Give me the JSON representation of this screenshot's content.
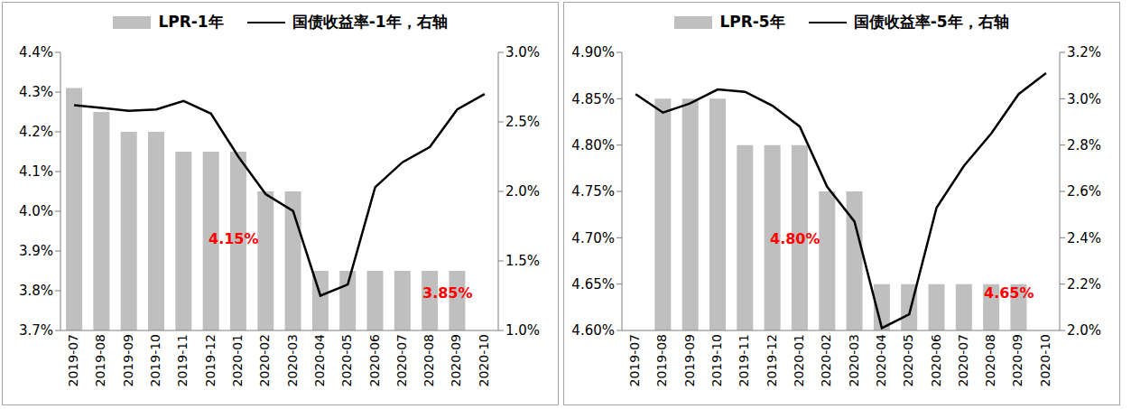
{
  "chart_data": [
    {
      "type": "bar",
      "legend": "top",
      "grid": false,
      "categories": [
        "2019-07",
        "2019-08",
        "2019-09",
        "2019-10",
        "2019-11",
        "2019-12",
        "2020-01",
        "2020-02",
        "2020-03",
        "2020-04",
        "2020-05",
        "2020-06",
        "2020-07",
        "2020-08",
        "2020-09",
        "2020-10"
      ],
      "series": [
        {
          "name": "LPR-1年",
          "type": "bar",
          "color": "#bfbfbf",
          "values": [
            4.31,
            4.25,
            4.2,
            4.2,
            4.15,
            4.15,
            4.15,
            4.05,
            4.05,
            3.85,
            3.85,
            3.85,
            3.85,
            3.85,
            3.85,
            null
          ]
        },
        {
          "name": "国债收益率-1年，右轴",
          "type": "line",
          "color": "#000000",
          "axis": "y2",
          "values": [
            2.62,
            2.6,
            2.58,
            2.59,
            2.65,
            2.56,
            2.25,
            1.98,
            1.86,
            1.25,
            1.33,
            2.03,
            2.21,
            2.32,
            2.59,
            2.7
          ]
        }
      ],
      "ylim": [
        3.7,
        4.4
      ],
      "yticks": [
        {
          "value": 3.7,
          "label": "3.7%"
        },
        {
          "value": 3.8,
          "label": "3.8%"
        },
        {
          "value": 3.9,
          "label": "3.9%"
        },
        {
          "value": 4.0,
          "label": "4.0%"
        },
        {
          "value": 4.1,
          "label": "4.1%"
        },
        {
          "value": 4.2,
          "label": "4.2%"
        },
        {
          "value": 4.3,
          "label": "4.3%"
        },
        {
          "value": 4.4,
          "label": "4.4%"
        }
      ],
      "y2lim": [
        1.0,
        3.0
      ],
      "y2ticks": [
        {
          "value": 1.0,
          "label": "1.0%"
        },
        {
          "value": 1.5,
          "label": "1.5%"
        },
        {
          "value": 2.0,
          "label": "2.0%"
        },
        {
          "value": 2.5,
          "label": "2.5%"
        },
        {
          "value": 3.0,
          "label": "3.0%"
        }
      ],
      "annotations": [
        {
          "text": "4.15%",
          "color": "#ff0000"
        },
        {
          "text": "3.85%",
          "color": "#ff0000"
        }
      ]
    },
    {
      "type": "bar",
      "legend": "top",
      "grid": false,
      "categories": [
        "2019-07",
        "2019-08",
        "2019-09",
        "2019-10",
        "2019-11",
        "2019-12",
        "2020-01",
        "2020-02",
        "2020-03",
        "2020-04",
        "2020-05",
        "2020-06",
        "2020-07",
        "2020-08",
        "2020-09",
        "2020-10"
      ],
      "series": [
        {
          "name": "LPR-5年",
          "type": "bar",
          "color": "#bfbfbf",
          "values": [
            null,
            4.85,
            4.85,
            4.85,
            4.8,
            4.8,
            4.8,
            4.75,
            4.75,
            4.65,
            4.65,
            4.65,
            4.65,
            4.65,
            4.65,
            null
          ]
        },
        {
          "name": "国债收益率-5年，右轴",
          "type": "line",
          "color": "#000000",
          "axis": "y2",
          "values": [
            3.02,
            2.94,
            2.98,
            3.04,
            3.03,
            2.97,
            2.88,
            2.62,
            2.47,
            2.01,
            2.07,
            2.53,
            2.71,
            2.85,
            3.02,
            3.11
          ]
        }
      ],
      "ylim": [
        4.6,
        4.9
      ],
      "yticks": [
        {
          "value": 4.6,
          "label": "4.60%"
        },
        {
          "value": 4.65,
          "label": "4.65%"
        },
        {
          "value": 4.7,
          "label": "4.70%"
        },
        {
          "value": 4.75,
          "label": "4.75%"
        },
        {
          "value": 4.8,
          "label": "4.80%"
        },
        {
          "value": 4.85,
          "label": "4.85%"
        },
        {
          "value": 4.9,
          "label": "4.90%"
        }
      ],
      "y2lim": [
        2.0,
        3.2
      ],
      "y2ticks": [
        {
          "value": 2.0,
          "label": "2.0%"
        },
        {
          "value": 2.2,
          "label": "2.2%"
        },
        {
          "value": 2.4,
          "label": "2.4%"
        },
        {
          "value": 2.6,
          "label": "2.6%"
        },
        {
          "value": 2.8,
          "label": "2.8%"
        },
        {
          "value": 3.0,
          "label": "3.0%"
        },
        {
          "value": 3.2,
          "label": "3.2%"
        }
      ],
      "annotations": [
        {
          "text": "4.80%",
          "color": "#ff0000"
        },
        {
          "text": "4.65%",
          "color": "#ff0000"
        }
      ]
    }
  ]
}
